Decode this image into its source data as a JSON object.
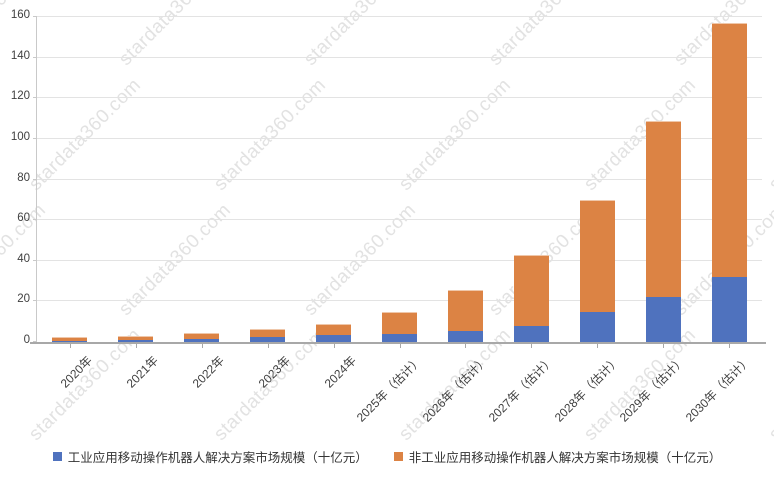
{
  "watermark": {
    "text": "stardata360.com"
  },
  "chart_data": {
    "type": "bar",
    "stacked": true,
    "grid": true,
    "legend_position": "bottom",
    "title": "",
    "xlabel": "",
    "ylabel": "",
    "ylim": [
      0,
      160
    ],
    "y_ticks": [
      0,
      20,
      40,
      60,
      80,
      100,
      120,
      140,
      160
    ],
    "categories": [
      "2020年",
      "2021年",
      "2022年",
      "2023年",
      "2024年",
      "2025年（估计）",
      "2026年（估计）",
      "2027年（估计）",
      "2028年（估计）",
      "2029年（估计）",
      "2030年（估计）"
    ],
    "series": [
      {
        "name": "工业应用移动操作机器人解决方案市场规模（十亿元）",
        "color": "#4F72BE",
        "values": [
          0.7,
          1.2,
          1.6,
          2.3,
          3.4,
          4.0,
          5.5,
          8.0,
          15.0,
          22.0,
          32.0
        ]
      },
      {
        "name": "非工业应用移动操作机器人解决方案市场规模（十亿元）",
        "color": "#DC8344",
        "values": [
          1.6,
          1.9,
          2.6,
          4.2,
          5.5,
          11.0,
          20.0,
          35.0,
          55.0,
          87.0,
          125.0
        ]
      }
    ],
    "totals": [
      2.3,
      3.1,
      4.2,
      6.5,
      8.9,
      15.0,
      25.5,
      43.0,
      70.0,
      109.0,
      157.0
    ]
  }
}
